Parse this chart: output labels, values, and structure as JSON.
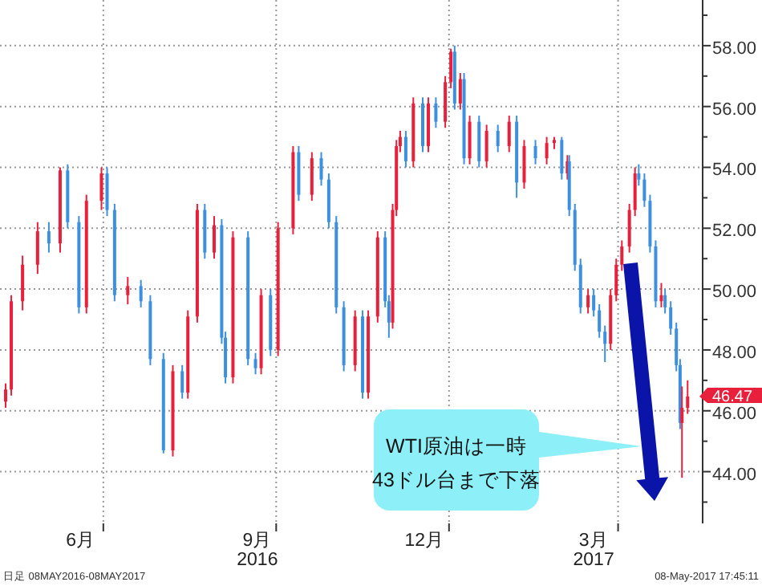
{
  "chart_data": {
    "type": "candlestick",
    "x": [
      "2016-05-10",
      "2016-05-13",
      "2016-05-19",
      "2016-05-27",
      "2016-06-02",
      "2016-06-08",
      "2016-06-12",
      "2016-06-18",
      "2016-06-22",
      "2016-06-30",
      "2016-07-03",
      "2016-07-07",
      "2016-07-14",
      "2016-07-21",
      "2016-07-26",
      "2016-08-02",
      "2016-08-07",
      "2016-08-12",
      "2016-08-15",
      "2016-08-20",
      "2016-08-24",
      "2016-08-29",
      "2016-09-02",
      "2016-09-04",
      "2016-09-08",
      "2016-09-16",
      "2016-09-20",
      "2016-09-23",
      "2016-09-28",
      "2016-10-02",
      "2016-10-10",
      "2016-10-13",
      "2016-10-20",
      "2016-10-25",
      "2016-10-29",
      "2016-11-02",
      "2016-11-06",
      "2016-11-12",
      "2016-11-16",
      "2016-11-19",
      "2016-11-24",
      "2016-11-28",
      "2016-11-30",
      "2016-12-02",
      "2016-12-04",
      "2016-12-06",
      "2016-12-09",
      "2016-12-13",
      "2016-12-18",
      "2016-12-21",
      "2016-12-25",
      "2016-12-30",
      "2017-01-02",
      "2017-01-04",
      "2017-01-07",
      "2017-01-09",
      "2017-01-12",
      "2017-01-17",
      "2017-01-21",
      "2017-01-27",
      "2017-02-02",
      "2017-02-06",
      "2017-02-10",
      "2017-02-16",
      "2017-02-22",
      "2017-02-26",
      "2017-03-02",
      "2017-03-05",
      "2017-03-06",
      "2017-03-09",
      "2017-03-12",
      "2017-03-16",
      "2017-03-19",
      "2017-03-22",
      "2017-03-25",
      "2017-03-28",
      "2017-03-31",
      "2017-04-03",
      "2017-04-07",
      "2017-04-10",
      "2017-04-12",
      "2017-04-15",
      "2017-04-18",
      "2017-04-21",
      "2017-04-24",
      "2017-04-26",
      "2017-04-29",
      "2017-05-02",
      "2017-05-04",
      "2017-05-05",
      "2017-05-08"
    ],
    "ohlc": [
      [
        46.3,
        46.9,
        46.1,
        46.7
      ],
      [
        46.7,
        49.8,
        46.5,
        49.6
      ],
      [
        49.6,
        51.1,
        49.3,
        50.8
      ],
      [
        50.8,
        52.2,
        50.5,
        51.9
      ],
      [
        51.9,
        52.2,
        51.2,
        51.5
      ],
      [
        51.5,
        54.0,
        51.2,
        53.9
      ],
      [
        53.9,
        54.1,
        52.0,
        52.2
      ],
      [
        52.2,
        52.4,
        49.2,
        49.4
      ],
      [
        49.4,
        53.1,
        49.2,
        52.9
      ],
      [
        52.9,
        54.0,
        52.6,
        53.8
      ],
      [
        53.8,
        54.0,
        52.4,
        52.6
      ],
      [
        52.6,
        52.8,
        49.6,
        49.8
      ],
      [
        49.8,
        50.4,
        49.5,
        50.1
      ],
      [
        50.1,
        50.3,
        49.4,
        49.6
      ],
      [
        49.6,
        49.8,
        47.5,
        47.7
      ],
      [
        47.7,
        47.9,
        44.6,
        44.7
      ],
      [
        44.7,
        47.5,
        44.5,
        47.3
      ],
      [
        47.3,
        47.5,
        46.4,
        46.6
      ],
      [
        46.6,
        49.3,
        46.4,
        49.1
      ],
      [
        49.1,
        52.8,
        48.9,
        52.6
      ],
      [
        52.6,
        52.8,
        51.0,
        51.2
      ],
      [
        51.2,
        52.4,
        51.0,
        52.1
      ],
      [
        52.1,
        52.3,
        48.2,
        48.4
      ],
      [
        48.4,
        48.6,
        46.9,
        47.1
      ],
      [
        47.1,
        51.9,
        46.9,
        51.7
      ],
      [
        51.7,
        51.9,
        47.5,
        47.7
      ],
      [
        47.7,
        47.9,
        47.2,
        47.4
      ],
      [
        47.4,
        50.0,
        47.2,
        49.8
      ],
      [
        49.8,
        50.0,
        47.8,
        48.0
      ],
      [
        48.0,
        52.2,
        47.8,
        52.0
      ],
      [
        52.0,
        54.7,
        51.8,
        54.5
      ],
      [
        54.5,
        54.7,
        52.9,
        53.1
      ],
      [
        53.1,
        54.5,
        52.9,
        54.3
      ],
      [
        54.3,
        54.5,
        53.4,
        53.6
      ],
      [
        53.6,
        53.8,
        52.0,
        52.2
      ],
      [
        52.2,
        52.4,
        49.2,
        49.4
      ],
      [
        49.4,
        49.6,
        47.3,
        47.5
      ],
      [
        47.5,
        49.3,
        47.3,
        49.1
      ],
      [
        49.1,
        49.3,
        46.4,
        46.6
      ],
      [
        46.6,
        49.3,
        46.4,
        49.1
      ],
      [
        49.1,
        51.9,
        48.9,
        51.7
      ],
      [
        51.7,
        51.9,
        49.4,
        49.6
      ],
      [
        49.6,
        49.8,
        48.4,
        48.9
      ],
      [
        48.9,
        52.8,
        48.7,
        52.6
      ],
      [
        52.6,
        54.9,
        52.4,
        54.7
      ],
      [
        54.7,
        55.2,
        54.5,
        55.0
      ],
      [
        55.0,
        55.2,
        54.0,
        54.2
      ],
      [
        54.2,
        56.3,
        54.0,
        56.1
      ],
      [
        56.1,
        56.3,
        54.5,
        54.7
      ],
      [
        54.7,
        56.3,
        54.5,
        56.1
      ],
      [
        56.1,
        56.3,
        55.3,
        55.5
      ],
      [
        55.5,
        57.0,
        55.3,
        56.8
      ],
      [
        56.8,
        57.9,
        56.6,
        57.8
      ],
      [
        57.8,
        58.0,
        55.9,
        56.1
      ],
      [
        56.1,
        57.1,
        55.9,
        56.9
      ],
      [
        56.9,
        57.1,
        54.1,
        54.3
      ],
      [
        54.3,
        55.7,
        54.1,
        55.5
      ],
      [
        55.5,
        55.7,
        54.0,
        54.2
      ],
      [
        54.2,
        55.4,
        54.0,
        55.2
      ],
      [
        55.2,
        55.4,
        54.5,
        54.7
      ],
      [
        54.7,
        55.7,
        54.5,
        55.5
      ],
      [
        55.5,
        55.7,
        53.0,
        53.5
      ],
      [
        53.5,
        54.9,
        53.3,
        54.7
      ],
      [
        54.7,
        54.9,
        54.1,
        54.3
      ],
      [
        54.3,
        55.0,
        54.1,
        54.8
      ],
      [
        54.8,
        55.0,
        54.6,
        54.9
      ],
      [
        54.9,
        55.0,
        53.6,
        53.8
      ],
      [
        53.8,
        54.4,
        53.6,
        54.2
      ],
      [
        54.2,
        54.4,
        52.4,
        52.6
      ],
      [
        52.6,
        52.8,
        50.6,
        50.8
      ],
      [
        50.8,
        51.0,
        49.2,
        49.4
      ],
      [
        49.4,
        50.0,
        49.2,
        49.8
      ],
      [
        49.8,
        50.0,
        49.1,
        49.3
      ],
      [
        49.3,
        49.5,
        48.4,
        48.6
      ],
      [
        48.6,
        48.8,
        47.6,
        48.2
      ],
      [
        48.2,
        50.0,
        48.0,
        49.8
      ],
      [
        49.8,
        51.0,
        49.6,
        50.8
      ],
      [
        50.8,
        51.6,
        50.6,
        51.4
      ],
      [
        51.4,
        52.8,
        51.2,
        52.6
      ],
      [
        52.6,
        54.0,
        52.4,
        53.8
      ],
      [
        53.8,
        54.1,
        53.4,
        53.6
      ],
      [
        53.6,
        53.8,
        52.7,
        52.9
      ],
      [
        52.9,
        53.1,
        51.2,
        51.4
      ],
      [
        51.4,
        51.6,
        49.4,
        49.6
      ],
      [
        49.6,
        50.2,
        49.4,
        49.8
      ],
      [
        49.8,
        50.0,
        49.2,
        49.4
      ],
      [
        49.4,
        49.6,
        48.5,
        48.7
      ],
      [
        48.7,
        48.9,
        47.3,
        47.5
      ],
      [
        47.5,
        47.7,
        45.4,
        45.6
      ],
      [
        45.6,
        46.8,
        43.8,
        46.1
      ],
      [
        46.1,
        47.0,
        45.9,
        46.47
      ]
    ],
    "colors": [
      "#e8203c",
      "#e8203c",
      "#e8203c",
      "#e8203c",
      "#3d8fe0",
      "#e8203c",
      "#3d8fe0",
      "#3d8fe0",
      "#e8203c",
      "#e8203c",
      "#3d8fe0",
      "#3d8fe0",
      "#e8203c",
      "#3d8fe0",
      "#3d8fe0",
      "#3d8fe0",
      "#e8203c",
      "#3d8fe0",
      "#e8203c",
      "#e8203c",
      "#3d8fe0",
      "#e8203c",
      "#3d8fe0",
      "#3d8fe0",
      "#e8203c",
      "#3d8fe0",
      "#3d8fe0",
      "#e8203c",
      "#3d8fe0",
      "#e8203c",
      "#e8203c",
      "#3d8fe0",
      "#e8203c",
      "#3d8fe0",
      "#3d8fe0",
      "#3d8fe0",
      "#3d8fe0",
      "#e8203c",
      "#3d8fe0",
      "#e8203c",
      "#e8203c",
      "#3d8fe0",
      "#3d8fe0",
      "#e8203c",
      "#e8203c",
      "#e8203c",
      "#3d8fe0",
      "#e8203c",
      "#3d8fe0",
      "#e8203c",
      "#3d8fe0",
      "#e8203c",
      "#e8203c",
      "#3d8fe0",
      "#e8203c",
      "#3d8fe0",
      "#e8203c",
      "#3d8fe0",
      "#e8203c",
      "#3d8fe0",
      "#e8203c",
      "#3d8fe0",
      "#e8203c",
      "#3d8fe0",
      "#e8203c",
      "#e8203c",
      "#3d8fe0",
      "#e8203c",
      "#3d8fe0",
      "#3d8fe0",
      "#3d8fe0",
      "#e8203c",
      "#3d8fe0",
      "#3d8fe0",
      "#3d8fe0",
      "#e8203c",
      "#e8203c",
      "#e8203c",
      "#e8203c",
      "#e8203c",
      "#3d8fe0",
      "#3d8fe0",
      "#3d8fe0",
      "#3d8fe0",
      "#e8203c",
      "#3d8fe0",
      "#3d8fe0",
      "#3d8fe0",
      "#3d8fe0",
      "#e8203c",
      "#e8203c"
    ],
    "xlim": [
      "2016-05-07",
      "2017-05-16"
    ],
    "xticks": [
      {
        "value": "2016-06-19",
        "label": "6月"
      },
      {
        "value": "2016-07-01",
        "label": null
      },
      {
        "value": "2016-09-21",
        "label": "9月\n2016"
      },
      {
        "value": "2016-10-01",
        "label": null
      },
      {
        "value": "2016-12-19",
        "label": "12月"
      },
      {
        "value": "2017-01-01",
        "label": null
      },
      {
        "value": "2017-03-19",
        "label": "3月\n2017"
      },
      {
        "value": "2017-04-01",
        "label": null
      }
    ],
    "ylim": [
      42.3,
      59.5
    ],
    "yticks": [
      {
        "value": 43,
        "label": null
      },
      {
        "value": 44,
        "label": "44.00"
      },
      {
        "value": 45,
        "label": null
      },
      {
        "value": 46,
        "label": "46.00"
      },
      {
        "value": 47,
        "label": null
      },
      {
        "value": 48,
        "label": "48.00"
      },
      {
        "value": 49,
        "label": null
      },
      {
        "value": 50,
        "label": "50.00"
      },
      {
        "value": 51,
        "label": null
      },
      {
        "value": 52,
        "label": "52.00"
      },
      {
        "value": 53,
        "label": null
      },
      {
        "value": 54,
        "label": "54.00"
      },
      {
        "value": 55,
        "label": null
      },
      {
        "value": 56,
        "label": "56.00"
      },
      {
        "value": 57,
        "label": null
      },
      {
        "value": 58,
        "label": "58.00"
      },
      {
        "value": 59,
        "label": null
      }
    ],
    "grid": true,
    "annotations": [
      "WTI原油は一時\n43ドル台まで下落",
      "46.47",
      "日足 08MAY2016-08MAY2017",
      "08-May-2017 17:45:11"
    ]
  }
}
